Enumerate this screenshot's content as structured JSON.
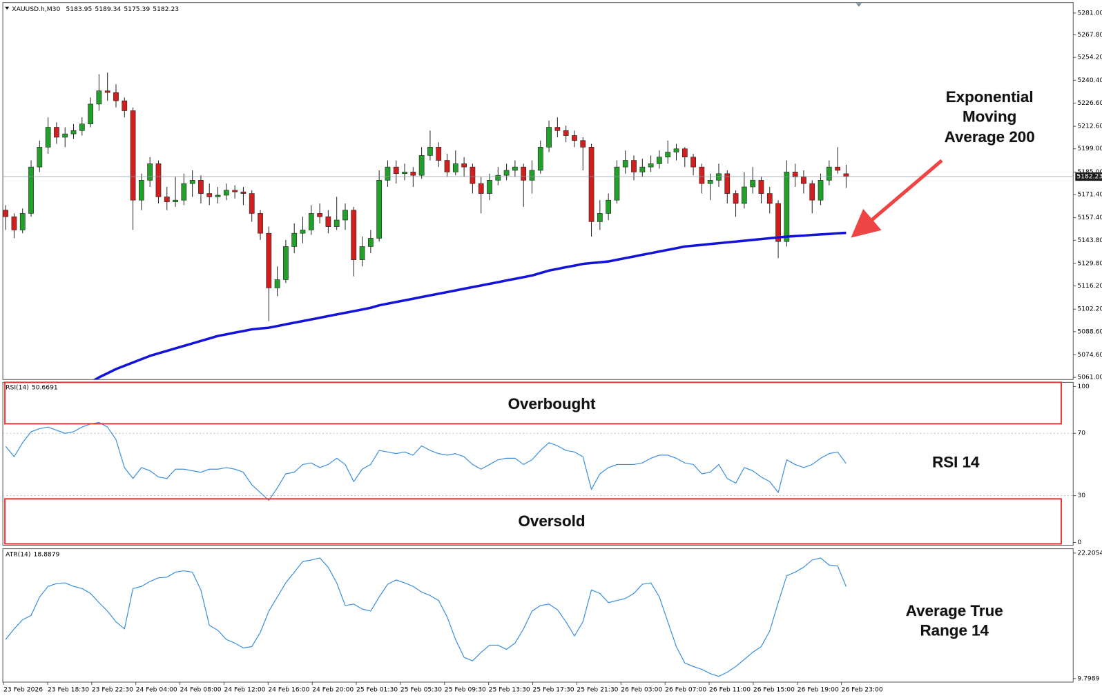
{
  "chart_data": [
    {
      "type": "candlestick",
      "symbol": "XAUUSD.h,M30",
      "up_color": "#22a02a",
      "down_color": "#d11f1f",
      "ylim": [
        5059.7,
        5287.3
      ],
      "yticks": [
        {
          "value": 5281,
          "label": "5281.00"
        },
        {
          "value": 5267.8,
          "label": "5267.80"
        },
        {
          "value": 5254.2,
          "label": "5254.20"
        },
        {
          "value": 5240.4,
          "label": "5240.40"
        },
        {
          "value": 5226.6,
          "label": "5226.60"
        },
        {
          "value": 5212.6,
          "label": "5212.60"
        },
        {
          "value": 5199,
          "label": "5199.00"
        },
        {
          "value": 5185,
          "label": "5185.00"
        },
        {
          "value": 5171.4,
          "label": "5171.40"
        },
        {
          "value": 5157.4,
          "label": "5157.40"
        },
        {
          "value": 5143.8,
          "label": "5143.80"
        },
        {
          "value": 5129.8,
          "label": "5129.80"
        },
        {
          "value": 5116.2,
          "label": "5116.20"
        },
        {
          "value": 5102.2,
          "label": "5102.20"
        },
        {
          "value": 5088.6,
          "label": "5088.60"
        },
        {
          "value": 5074.6,
          "label": "5074.60"
        },
        {
          "value": 5061,
          "label": "5061.00"
        }
      ],
      "candles": [
        [
          5162,
          5165,
          5150,
          5158
        ],
        [
          5158,
          5160,
          5145,
          5150
        ],
        [
          5150,
          5163,
          5148,
          5160
        ],
        [
          5160,
          5192,
          5158,
          5188
        ],
        [
          5188,
          5204,
          5185,
          5200
        ],
        [
          5200,
          5218,
          5196,
          5212
        ],
        [
          5212,
          5215,
          5202,
          5206
        ],
        [
          5206,
          5212,
          5200,
          5208
        ],
        [
          5208,
          5214,
          5205,
          5210
        ],
        [
          5210,
          5218,
          5207,
          5214
        ],
        [
          5214,
          5230,
          5212,
          5226
        ],
        [
          5226,
          5244,
          5222,
          5234
        ],
        [
          5234,
          5245,
          5228,
          5233
        ],
        [
          5233,
          5238,
          5224,
          5228
        ],
        [
          5228,
          5230,
          5218,
          5222
        ],
        [
          5222,
          5224,
          5150,
          5168
        ],
        [
          5168,
          5184,
          5162,
          5180
        ],
        [
          5180,
          5194,
          5176,
          5190
        ],
        [
          5190,
          5192,
          5166,
          5170
        ],
        [
          5170,
          5176,
          5162,
          5167
        ],
        [
          5167,
          5182,
          5164,
          5168
        ],
        [
          5168,
          5184,
          5165,
          5178
        ],
        [
          5178,
          5186,
          5170,
          5180
        ],
        [
          5180,
          5183,
          5166,
          5172
        ],
        [
          5172,
          5178,
          5165,
          5170
        ],
        [
          5170,
          5176,
          5166,
          5171
        ],
        [
          5171,
          5178,
          5168,
          5174
        ],
        [
          5174,
          5177,
          5169,
          5173
        ],
        [
          5173,
          5176,
          5165,
          5172
        ],
        [
          5172,
          5174,
          5155,
          5160
        ],
        [
          5160,
          5162,
          5144,
          5148
        ],
        [
          5148,
          5152,
          5095,
          5115
        ],
        [
          5115,
          5128,
          5110,
          5120
        ],
        [
          5120,
          5144,
          5118,
          5140
        ],
        [
          5140,
          5154,
          5136,
          5148
        ],
        [
          5148,
          5158,
          5142,
          5150
        ],
        [
          5150,
          5165,
          5147,
          5160
        ],
        [
          5160,
          5166,
          5154,
          5158
        ],
        [
          5158,
          5162,
          5148,
          5152
        ],
        [
          5152,
          5170,
          5150,
          5156
        ],
        [
          5156,
          5166,
          5150,
          5162
        ],
        [
          5162,
          5164,
          5122,
          5132
        ],
        [
          5132,
          5146,
          5128,
          5140
        ],
        [
          5140,
          5150,
          5136,
          5145
        ],
        [
          5145,
          5186,
          5143,
          5180
        ],
        [
          5180,
          5192,
          5176,
          5188
        ],
        [
          5188,
          5192,
          5178,
          5184
        ],
        [
          5184,
          5190,
          5180,
          5185
        ],
        [
          5185,
          5188,
          5176,
          5183
        ],
        [
          5183,
          5200,
          5181,
          5195
        ],
        [
          5195,
          5210,
          5192,
          5200
        ],
        [
          5200,
          5203,
          5188,
          5192
        ],
        [
          5192,
          5196,
          5182,
          5185
        ],
        [
          5185,
          5198,
          5183,
          5190
        ],
        [
          5190,
          5194,
          5182,
          5188
        ],
        [
          5188,
          5190,
          5172,
          5178
        ],
        [
          5178,
          5182,
          5160,
          5172
        ],
        [
          5172,
          5184,
          5168,
          5180
        ],
        [
          5180,
          5188,
          5177,
          5183
        ],
        [
          5183,
          5190,
          5180,
          5186
        ],
        [
          5186,
          5192,
          5182,
          5188
        ],
        [
          5188,
          5190,
          5164,
          5180
        ],
        [
          5180,
          5192,
          5172,
          5186
        ],
        [
          5186,
          5204,
          5184,
          5200
        ],
        [
          5200,
          5216,
          5197,
          5212
        ],
        [
          5212,
          5218,
          5206,
          5210
        ],
        [
          5210,
          5213,
          5203,
          5207
        ],
        [
          5207,
          5210,
          5200,
          5204
        ],
        [
          5204,
          5206,
          5186,
          5200
        ],
        [
          5200,
          5202,
          5146,
          5155
        ],
        [
          5155,
          5168,
          5150,
          5160
        ],
        [
          5160,
          5172,
          5156,
          5168
        ],
        [
          5168,
          5192,
          5166,
          5188
        ],
        [
          5188,
          5198,
          5184,
          5192
        ],
        [
          5192,
          5195,
          5180,
          5185
        ],
        [
          5185,
          5193,
          5182,
          5188
        ],
        [
          5188,
          5195,
          5185,
          5190
        ],
        [
          5190,
          5198,
          5187,
          5194
        ],
        [
          5194,
          5204,
          5190,
          5197
        ],
        [
          5197,
          5202,
          5192,
          5199
        ],
        [
          5199,
          5200,
          5188,
          5194
        ],
        [
          5194,
          5196,
          5183,
          5188
        ],
        [
          5188,
          5190,
          5172,
          5178
        ],
        [
          5178,
          5184,
          5168,
          5180
        ],
        [
          5180,
          5190,
          5176,
          5184
        ],
        [
          5184,
          5186,
          5166,
          5172
        ],
        [
          5172,
          5174,
          5158,
          5166
        ],
        [
          5166,
          5185,
          5163,
          5176
        ],
        [
          5176,
          5188,
          5172,
          5180
        ],
        [
          5180,
          5182,
          5166,
          5172
        ],
        [
          5172,
          5176,
          5160,
          5166
        ],
        [
          5166,
          5168,
          5133,
          5143
        ],
        [
          5143,
          5192,
          5140,
          5185
        ],
        [
          5185,
          5190,
          5176,
          5182
        ],
        [
          5182,
          5186,
          5172,
          5178
        ],
        [
          5178,
          5180,
          5160,
          5168
        ],
        [
          5168,
          5184,
          5165,
          5180
        ],
        [
          5180,
          5192,
          5177,
          5188
        ],
        [
          5188,
          5200,
          5184,
          5186
        ],
        [
          5183.95,
          5189.34,
          5175.39,
          5182.23
        ]
      ],
      "ema": {
        "color": "#1414d8",
        "values": [
          null,
          null,
          null,
          null,
          null,
          null,
          null,
          null,
          null,
          null,
          5058,
          5061,
          5063.5,
          5066,
          5068,
          5070,
          5072,
          5074,
          5075.5,
          5077,
          5078.5,
          5080,
          5081.5,
          5083,
          5084.5,
          5086,
          5087,
          5088,
          5089,
          5090,
          5090.5,
          5091,
          5092,
          5093,
          5094,
          5095,
          5096,
          5097,
          5098,
          5099,
          5100,
          5101,
          5102,
          5103,
          5104.5,
          5105.5,
          5106.5,
          5107.5,
          5108.5,
          5109.5,
          5110.5,
          5111.5,
          5112.5,
          5113.5,
          5114.5,
          5115.5,
          5116.5,
          5117.5,
          5118.5,
          5119.5,
          5120.5,
          5121.5,
          5122.5,
          5124,
          5125.5,
          5126.5,
          5127.5,
          5128.5,
          5129.5,
          5130,
          5130.5,
          5131,
          5132,
          5133,
          5134,
          5135,
          5136,
          5137,
          5138,
          5139,
          5140,
          5140.5,
          5141,
          5141.5,
          5142,
          5142.5,
          5143,
          5143.5,
          5144,
          5144.5,
          5145,
          5145.5,
          5146,
          5146.3,
          5146.6,
          5147,
          5147.3,
          5147.6,
          5148,
          5148.3
        ]
      },
      "annotation": [
        "Exponential",
        "Moving",
        "Average 200"
      ]
    },
    {
      "type": "line",
      "label": "RSI(14)",
      "color": "#3b8fe0",
      "ylim": [
        -1.8,
        102.7
      ],
      "yticks": [
        100,
        70,
        30,
        0
      ],
      "levels": [
        70,
        30
      ],
      "values": [
        61.7,
        55,
        64,
        71,
        73,
        74,
        72,
        70,
        71,
        74,
        76,
        77,
        74,
        66,
        48,
        41,
        48,
        46,
        42,
        41,
        47,
        47,
        46,
        45,
        47,
        47,
        48,
        47,
        45,
        37,
        32,
        27,
        35,
        44,
        45,
        50,
        51,
        48,
        50,
        54,
        50,
        39,
        47,
        50,
        59,
        58,
        57,
        58,
        56,
        62,
        59,
        57,
        56,
        57,
        55,
        50,
        47,
        50,
        53,
        54,
        54,
        50,
        53,
        59,
        64,
        62,
        59,
        58,
        55,
        34,
        44,
        48,
        50,
        50,
        50,
        51,
        54,
        56,
        56,
        54,
        51,
        50,
        44,
        45,
        50,
        41,
        38,
        48,
        46,
        42,
        39,
        32,
        53,
        50,
        48,
        50,
        54,
        57,
        58,
        50.6691
      ],
      "annotations": [
        "Overbought",
        "Oversold",
        "RSI 14"
      ]
    },
    {
      "type": "line",
      "label": "ATR(14)",
      "color": "#3b8fe0",
      "ylim": [
        9.45,
        22.63
      ],
      "yticks": [
        22.2054,
        9.7989
      ],
      "values": [
        13.66,
        14.71,
        15.62,
        16.04,
        17.86,
        18.91,
        19.19,
        19.26,
        18.91,
        18.7,
        18.21,
        17.3,
        16.46,
        15.41,
        14.71,
        18.7,
        18.91,
        19.4,
        19.75,
        19.82,
        20.31,
        20.45,
        20.31,
        18.56,
        15.06,
        14.57,
        13.66,
        13.31,
        12.82,
        12.96,
        14.36,
        16.46,
        17.86,
        19.26,
        20.31,
        21.37,
        21.51,
        21.72,
        20.8,
        19.26,
        17.02,
        17.16,
        16.67,
        16.46,
        17.86,
        19.12,
        19.54,
        19.26,
        18.91,
        18.35,
        18,
        17.51,
        15.9,
        13.66,
        11.9,
        11.55,
        12.39,
        13.1,
        13.1,
        12.68,
        13.31,
        14.71,
        16.46,
        17.02,
        17.16,
        16.6,
        15.41,
        14.01,
        15.41,
        18.56,
        18.21,
        17.3,
        17.51,
        17.72,
        18.21,
        19.12,
        19.26,
        17.86,
        15.41,
        12.96,
        11.34,
        10.99,
        10.71,
        10.29,
        10.01,
        10.43,
        10.99,
        11.69,
        12.39,
        12.96,
        14.5,
        17.3,
        19.96,
        20.31,
        20.8,
        21.51,
        21.72,
        21.01,
        20.94,
        18.8879
      ],
      "annotation": [
        "Average True",
        "Range 14"
      ],
      "xticks": [
        "23 Feb 2026",
        "23 Feb 18:30",
        "23 Feb 22:30",
        "24 Feb 04:00",
        "24 Feb 08:00",
        "24 Feb 12:00",
        "24 Feb 16:00",
        "24 Feb 20:00",
        "25 Feb 01:30",
        "25 Feb 05:30",
        "25 Feb 09:30",
        "25 Feb 13:30",
        "25 Feb 17:30",
        "25 Feb 21:30",
        "26 Feb 03:00",
        "26 Feb 07:00",
        "26 Feb 11:00",
        "26 Feb 15:00",
        "26 Feb 19:00",
        "26 Feb 23:00"
      ]
    }
  ]
}
